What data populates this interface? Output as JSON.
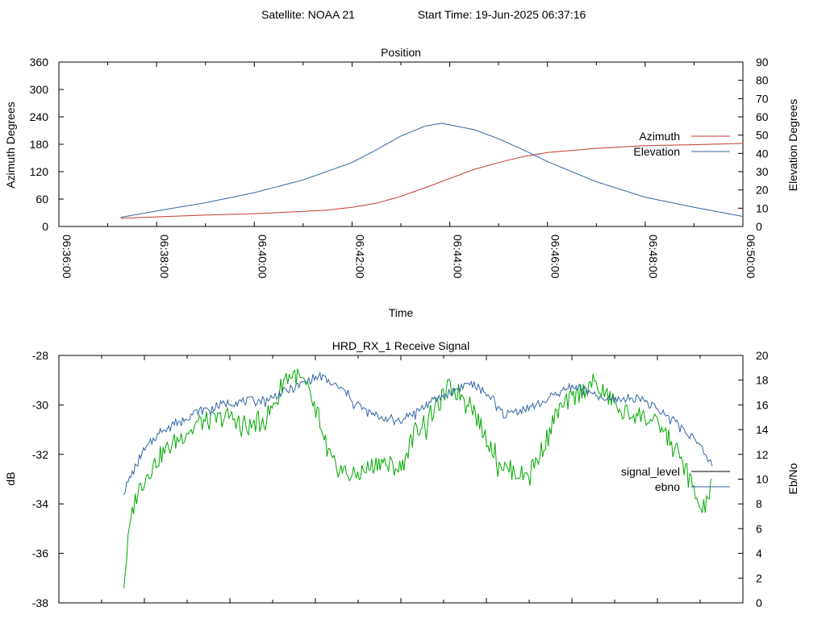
{
  "header": {
    "satellite": "Satellite: NOAA 21",
    "start_time": "Start Time: 19-Jun-2025 06:37:16"
  },
  "colors": {
    "azimuth": "#c0392b",
    "elevation": "#3465a4",
    "signal_level": "#000000",
    "ebno_trace": "#00aa00",
    "ebno_legend": "#3465a4",
    "axis": "#000000"
  },
  "chart_data": [
    {
      "type": "line",
      "title": "Position",
      "xlabel": "Time",
      "ylabel": "Azimuth Degrees",
      "y2label": "Elevation Degrees",
      "xlim": [
        "06:36:00",
        "06:50:00"
      ],
      "ylim": [
        0,
        360
      ],
      "y2lim": [
        0,
        90
      ],
      "x_ticks": [
        "06:36:00",
        "06:38:00",
        "06:40:00",
        "06:42:00",
        "06:44:00",
        "06:46:00",
        "06:48:00",
        "06:50:00"
      ],
      "y_ticks": [
        0,
        60,
        120,
        180,
        240,
        300,
        360
      ],
      "y2_ticks": [
        0,
        10,
        20,
        30,
        40,
        50,
        60,
        70,
        80,
        90
      ],
      "legend_position": "right",
      "series": [
        {
          "name": "Azimuth",
          "axis": "y",
          "x": [
            "06:37:16",
            "06:38:00",
            "06:39:00",
            "06:40:00",
            "06:41:00",
            "06:41:30",
            "06:42:00",
            "06:42:30",
            "06:43:00",
            "06:43:30",
            "06:44:00",
            "06:44:30",
            "06:45:00",
            "06:45:30",
            "06:46:00",
            "06:47:00",
            "06:48:00",
            "06:49:00",
            "06:50:00"
          ],
          "values": [
            18,
            21,
            25,
            28,
            33,
            36,
            42,
            51,
            66,
            85,
            105,
            125,
            140,
            153,
            162,
            171,
            177,
            179,
            182
          ]
        },
        {
          "name": "Elevation",
          "axis": "y2",
          "x": [
            "06:37:16",
            "06:38:00",
            "06:39:00",
            "06:40:00",
            "06:41:00",
            "06:42:00",
            "06:42:30",
            "06:43:00",
            "06:43:30",
            "06:43:50",
            "06:44:30",
            "06:45:00",
            "06:45:30",
            "06:46:00",
            "06:47:00",
            "06:48:00",
            "06:49:00",
            "06:50:00"
          ],
          "values": [
            5,
            8.5,
            13,
            18.5,
            25.5,
            35,
            42,
            49.5,
            55,
            56.5,
            53,
            48,
            42,
            35.5,
            24.5,
            16,
            10.5,
            5.5
          ]
        }
      ]
    },
    {
      "type": "line",
      "title": "HRD_RX_1 Receive Signal",
      "xlabel": "",
      "ylabel": "dB",
      "y2label": "Eb/No",
      "ylim": [
        -38,
        -28
      ],
      "y2lim": [
        0,
        20
      ],
      "y_ticks": [
        -38,
        -36,
        -34,
        -32,
        -30,
        -28
      ],
      "y2_ticks": [
        0,
        2,
        4,
        6,
        8,
        10,
        12,
        14,
        16,
        18,
        20
      ],
      "legend_position": "right",
      "series": [
        {
          "name": "signal_level",
          "axis": "y",
          "x_fraction": [
            0.095,
            0.12,
            0.15,
            0.2,
            0.25,
            0.3,
            0.345,
            0.38,
            0.42,
            0.45,
            0.47,
            0.5,
            0.55,
            0.6,
            0.63,
            0.65,
            0.7,
            0.75,
            0.8,
            0.85,
            0.88,
            0.9,
            0.93,
            0.955
          ],
          "values": [
            -33.5,
            -32.0,
            -31.0,
            -30.3,
            -29.9,
            -29.8,
            -29.3,
            -28.8,
            -29.5,
            -30.3,
            -30.5,
            -30.6,
            -29.8,
            -29.1,
            -29.6,
            -30.4,
            -30.0,
            -29.2,
            -29.8,
            -29.7,
            -30.3,
            -30.6,
            -31.4,
            -32.4
          ]
        },
        {
          "name": "ebno",
          "axis": "y2",
          "x_fraction": [
            0.095,
            0.105,
            0.115,
            0.13,
            0.15,
            0.18,
            0.2,
            0.23,
            0.25,
            0.28,
            0.31,
            0.33,
            0.345,
            0.36,
            0.38,
            0.4,
            0.43,
            0.45,
            0.47,
            0.5,
            0.52,
            0.55,
            0.57,
            0.6,
            0.62,
            0.65,
            0.68,
            0.7,
            0.73,
            0.75,
            0.78,
            0.8,
            0.83,
            0.85,
            0.88,
            0.9,
            0.92,
            0.94,
            0.955
          ],
          "values": [
            1.5,
            7,
            9,
            10.5,
            12,
            13.5,
            14.5,
            14.8,
            15.1,
            14.2,
            15.5,
            18.2,
            18.5,
            17.6,
            15,
            11.2,
            10.2,
            10.8,
            11.5,
            10.8,
            13.8,
            15.6,
            17.4,
            16.5,
            13.8,
            11,
            10.3,
            11.6,
            15.6,
            16.5,
            17.8,
            16.8,
            15.3,
            15.2,
            14.2,
            12.6,
            10.5,
            7.2,
            9.5
          ]
        }
      ]
    }
  ]
}
